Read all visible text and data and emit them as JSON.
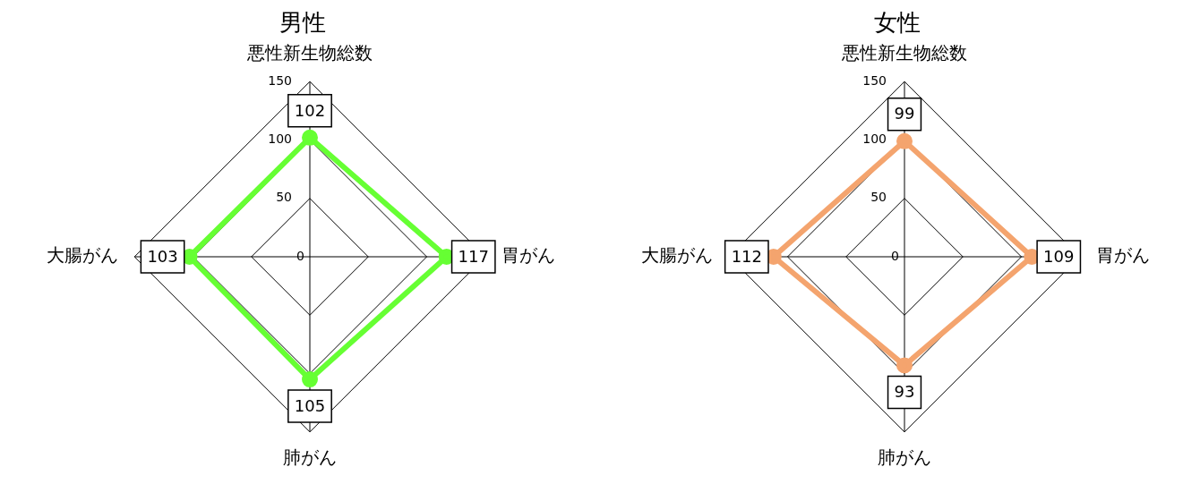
{
  "chart_data": [
    {
      "type": "radar",
      "title": "男性",
      "categories": [
        "悪性新生物総数",
        "胃がん",
        "肺がん",
        "大腸がん"
      ],
      "series": [
        {
          "color": "#66ff33",
          "values": [
            102,
            117,
            105,
            103
          ]
        }
      ],
      "ylim": [
        0,
        150
      ],
      "yticks": [
        0,
        50,
        100,
        150
      ],
      "grid": true,
      "data_labels": true,
      "marker": "circle",
      "line_style": "solid"
    },
    {
      "type": "radar",
      "title": "女性",
      "categories": [
        "悪性新生物総数",
        "胃がん",
        "肺がん",
        "大腸がん"
      ],
      "series": [
        {
          "color": "#f4a46e",
          "values": [
            99,
            109,
            93,
            112
          ]
        }
      ],
      "ylim": [
        0,
        150
      ],
      "yticks": [
        0,
        50,
        100,
        150
      ],
      "grid": true,
      "data_labels": true,
      "marker": "circle",
      "line_style": "solid"
    }
  ]
}
